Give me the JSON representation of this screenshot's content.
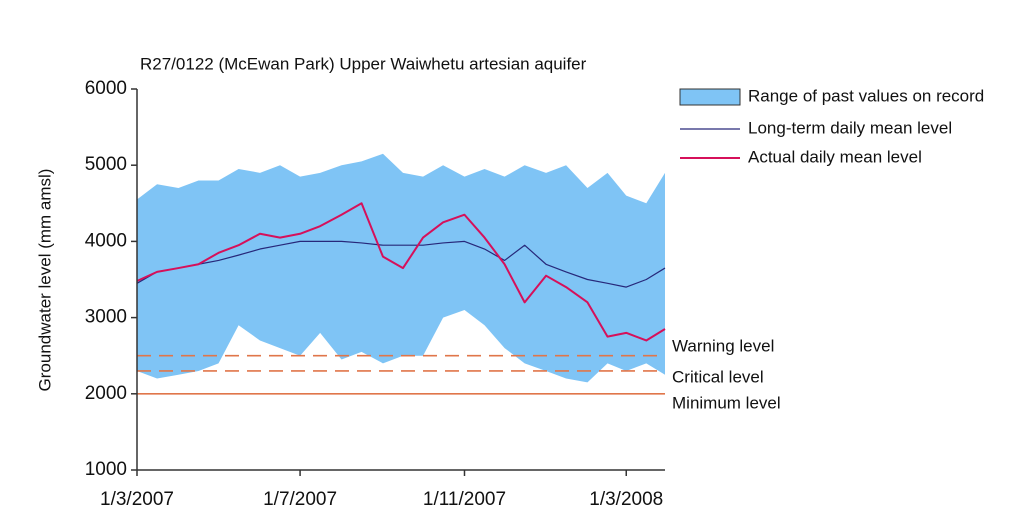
{
  "chart_data": {
    "type": "band-line",
    "title": "R27/0122 (McEwan Park) Upper Waiwhetu artesian aquifer",
    "ylabel": "Groundwater level (mm amsl)",
    "x": [
      "2007-03-01",
      "2007-03-16",
      "2007-04-01",
      "2007-04-16",
      "2007-05-01",
      "2007-05-16",
      "2007-06-01",
      "2007-06-16",
      "2007-07-01",
      "2007-07-16",
      "2007-08-01",
      "2007-08-16",
      "2007-09-01",
      "2007-09-16",
      "2007-10-01",
      "2007-10-16",
      "2007-11-01",
      "2007-11-16",
      "2007-12-01",
      "2007-12-16",
      "2008-01-01",
      "2008-01-16",
      "2008-02-01",
      "2008-02-16",
      "2008-03-01",
      "2008-03-16",
      "2008-03-30"
    ],
    "band": {
      "name": "Range of past values on record",
      "color": "#7fc4f5",
      "lower": [
        2300,
        2200,
        2250,
        2300,
        2400,
        2900,
        2700,
        2600,
        2500,
        2800,
        2450,
        2550,
        2400,
        2500,
        2500,
        3000,
        3100,
        2900,
        2600,
        2400,
        2300,
        2200,
        2150,
        2400,
        2300,
        2400,
        2250
      ],
      "upper": [
        4550,
        4750,
        4700,
        4800,
        4800,
        4950,
        4900,
        5000,
        4850,
        4900,
        5000,
        5050,
        5150,
        4900,
        4850,
        5000,
        4850,
        4950,
        4850,
        5000,
        4900,
        5000,
        4700,
        4900,
        4600,
        4500,
        4900
      ]
    },
    "series": [
      {
        "name": "Long-term daily mean level",
        "color": "#27287a",
        "width": 1.2,
        "values": [
          3450,
          3600,
          3650,
          3700,
          3750,
          3820,
          3900,
          3950,
          4000,
          4000,
          4000,
          3980,
          3950,
          3950,
          3950,
          3980,
          4000,
          3900,
          3750,
          3950,
          3700,
          3600,
          3500,
          3450,
          3400,
          3500,
          3650
        ]
      },
      {
        "name": "Actual daily mean level",
        "color": "#d6105a",
        "width": 2,
        "values": [
          3480,
          3600,
          3650,
          3700,
          3850,
          3950,
          4100,
          4050,
          4100,
          4200,
          4350,
          4500,
          3800,
          3650,
          4050,
          4250,
          4350,
          4050,
          3700,
          3200,
          3550,
          3400,
          3200,
          2750,
          2800,
          2700,
          2850
        ]
      }
    ],
    "thresholds": [
      {
        "label": "Warning level",
        "value": 2500,
        "dashed": true,
        "color": "#e0764a"
      },
      {
        "label": "Critical level",
        "value": 2300,
        "dashed": true,
        "color": "#e0764a"
      },
      {
        "label": "Minimum level",
        "value": 2000,
        "dashed": false,
        "color": "#e0764a"
      }
    ],
    "xlim": [
      "2007-03-01",
      "2008-03-30"
    ],
    "xticks": [
      {
        "value": "2007-03-01",
        "label": "1/3/2007"
      },
      {
        "value": "2007-07-01",
        "label": "1/7/2007"
      },
      {
        "value": "2007-11-01",
        "label": "1/11/2007"
      },
      {
        "value": "2008-03-01",
        "label": "1/3/2008"
      }
    ],
    "ylim": [
      1000,
      6000
    ],
    "yticks": [
      1000,
      2000,
      3000,
      4000,
      5000,
      6000
    ],
    "legend": "upper right"
  }
}
